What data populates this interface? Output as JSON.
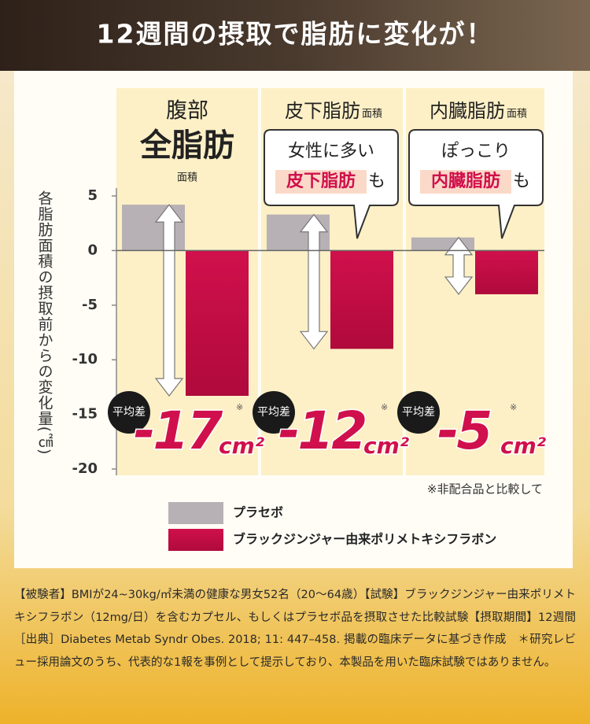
{
  "chart_data": {
    "type": "bar",
    "title": "12週間の摂取で脂肪に変化が！",
    "y_label": "各脂肪面積の摂取前からの変化量(㎠)",
    "category_labels": [
      [
        "腹部",
        "全脂肪",
        "面積"
      ],
      [
        "皮下脂肪",
        "面積"
      ],
      [
        "内臓脂肪",
        "面積"
      ]
    ],
    "callouts": [
      null,
      [
        "女性に多い",
        "皮下脂肪",
        "も"
      ],
      [
        "ぽっこり",
        "内臓脂肪",
        "も"
      ]
    ],
    "series": [
      {
        "name": "プラセボ",
        "color": "#b7b0b5",
        "values": [
          4.2,
          3.3,
          1.2
        ]
      },
      {
        "name": "ブラックジンジャー由来ポリメトキシフラボン",
        "color": "#d0104c",
        "values": [
          -13.3,
          -9.0,
          -4.0
        ]
      }
    ],
    "difference_badge": "平均差",
    "difference_labels": [
      "-17",
      "-12",
      "-5"
    ],
    "difference_unit": "cm²",
    "difference_mark": "※",
    "comparison_note": "※非配合品と比較して",
    "ylim": [
      -20,
      5
    ],
    "yticks": [
      -20,
      -15,
      -10,
      -5,
      0,
      5
    ]
  },
  "footnote": "【被験者】BMIが24~30kg/㎡未満の健康な男女52名（20～64歳）【試験】ブラックジンジャー由来ポリメトキシフラボン（12mg/日）を含むカプセル、もしくはプラセボ品を摂取させた比較試験【摂取期間】12週間［出典］Diabetes Metab Syndr Obes. 2018; 11: 447–458. 掲載の臨床データに基づき作成　＊研究レビュー採用論文のうち、代表的な1報を事例として提示しており、本製品を用いた臨床試験ではありません。"
}
